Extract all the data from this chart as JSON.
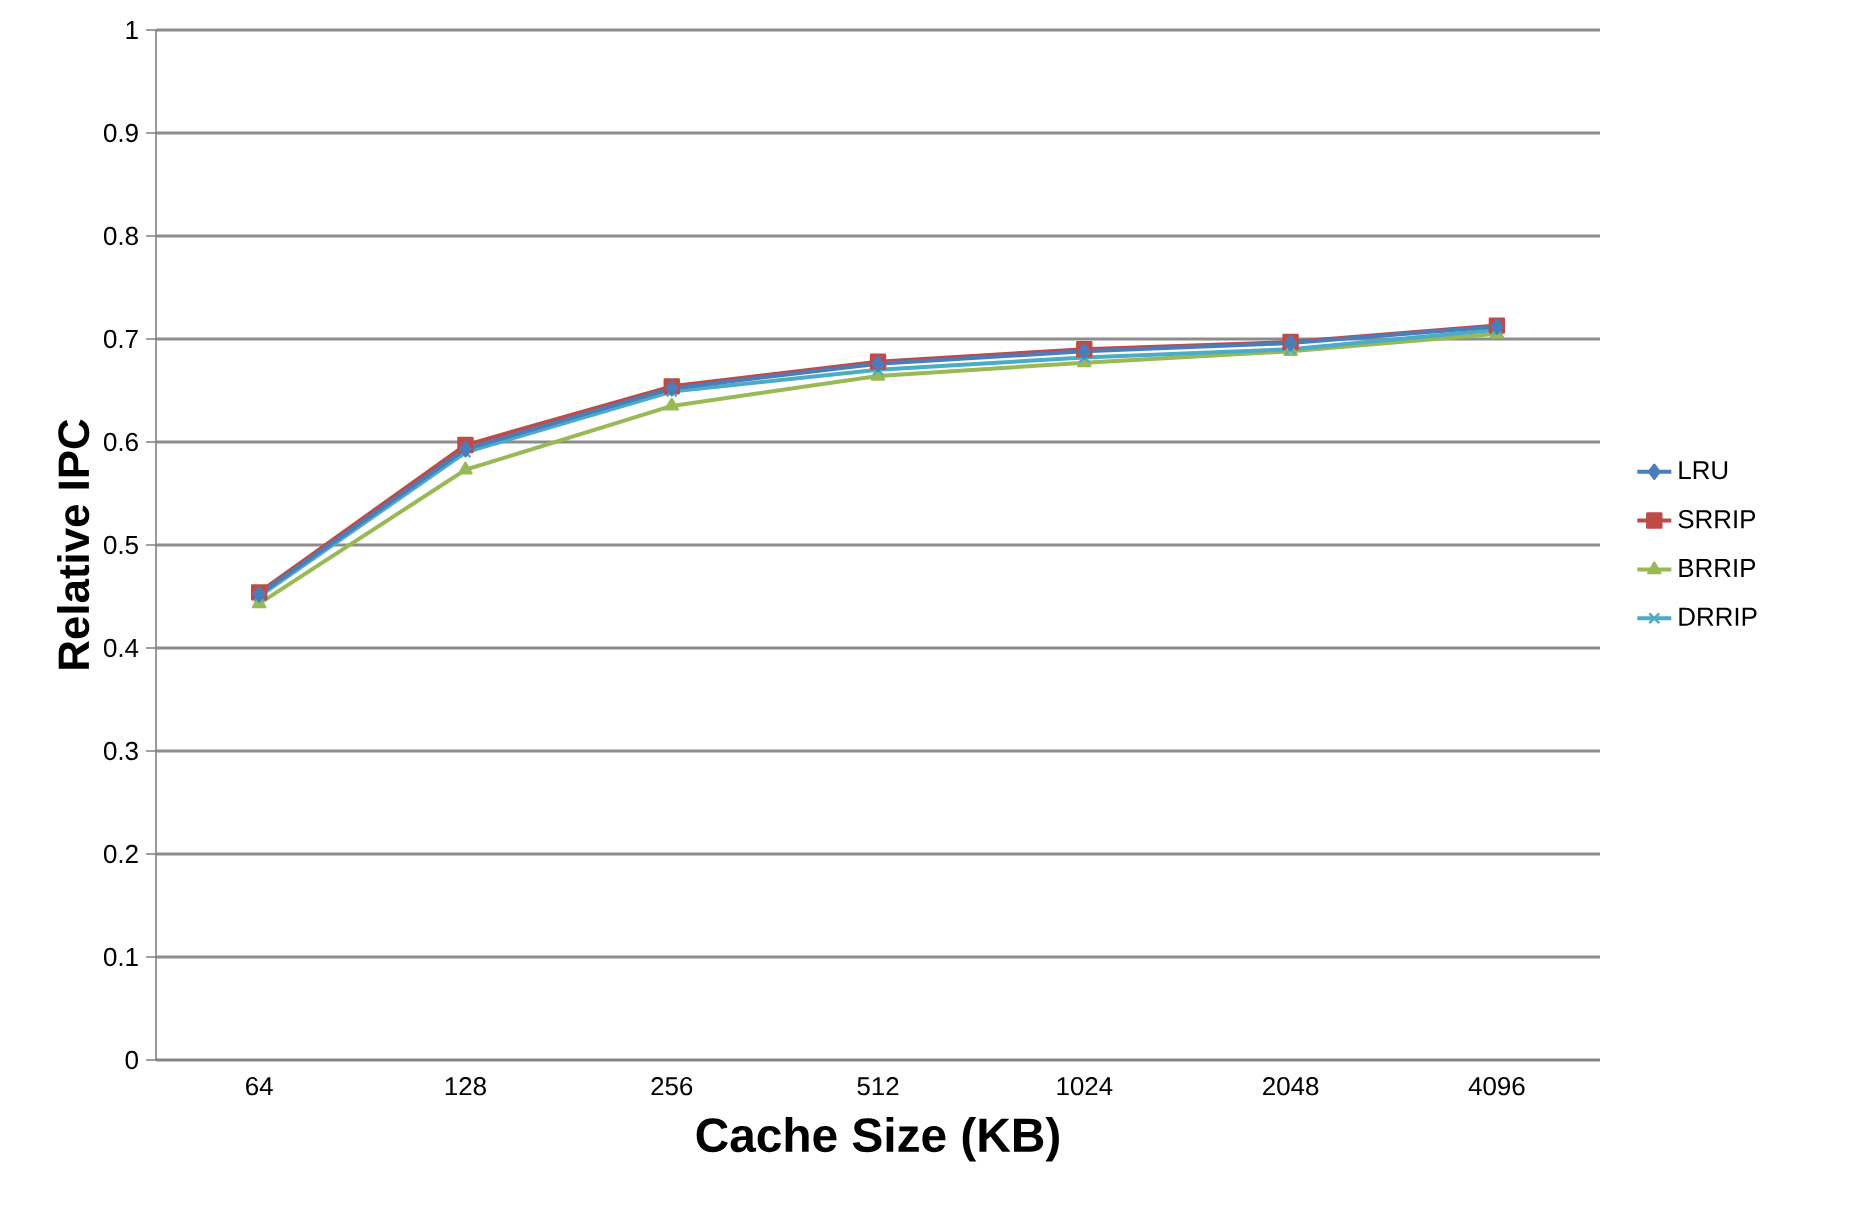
{
  "chart_data": {
    "type": "line",
    "xlabel": "Cache Size (KB)",
    "ylabel": "Relative IPC",
    "categories": [
      "64",
      "128",
      "256",
      "512",
      "1024",
      "2048",
      "4096"
    ],
    "series": [
      {
        "name": "LRU",
        "color": "#4a7ebb",
        "marker": "diamond",
        "values": [
          0.452,
          0.593,
          0.652,
          0.676,
          0.688,
          0.696,
          0.712
        ]
      },
      {
        "name": "SRRIP",
        "color": "#be4b48",
        "marker": "square",
        "values": [
          0.454,
          0.597,
          0.654,
          0.678,
          0.69,
          0.697,
          0.713
        ]
      },
      {
        "name": "BRRIP",
        "color": "#98b954",
        "marker": "triangle",
        "values": [
          0.443,
          0.573,
          0.635,
          0.664,
          0.677,
          0.688,
          0.705
        ]
      },
      {
        "name": "DRRIP",
        "color": "#4bacc6",
        "marker": "cross",
        "values": [
          0.45,
          0.59,
          0.649,
          0.67,
          0.682,
          0.69,
          0.709
        ]
      }
    ],
    "ylim": [
      0,
      1
    ],
    "yticks": [
      0,
      0.1,
      0.2,
      0.3,
      0.4,
      0.5,
      0.6,
      0.7,
      0.8,
      0.9,
      1
    ],
    "grid": "y",
    "legend": "right",
    "line_style": "solid"
  }
}
